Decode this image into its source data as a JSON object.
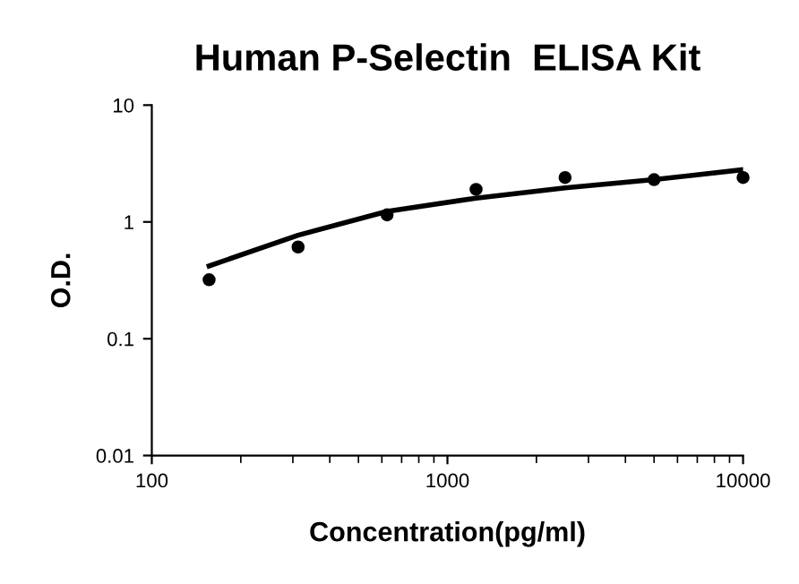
{
  "chart_data": {
    "type": "scatter",
    "title": "Human P-Selectin  ELISA Kit",
    "xlabel": "Concentration(pg/ml)",
    "ylabel": "O.D.",
    "log": "xy",
    "xlim": [
      100,
      10000
    ],
    "xticks": [
      100,
      1000,
      10000
    ],
    "ylim": [
      0.01,
      10
    ],
    "yticks": [
      0.01,
      0.1,
      1,
      10
    ],
    "grid": false,
    "series": [
      {
        "color": "#000000",
        "marker": "circle",
        "x": [
          156.25,
          312.5,
          625,
          1250,
          2500,
          5000,
          10000
        ],
        "values": [
          0.32,
          0.61,
          1.15,
          1.9,
          2.4,
          2.3,
          2.4
        ]
      },
      {
        "type": "line",
        "color": "#000000",
        "marker": "none",
        "x": [
          156.25,
          312.5,
          625,
          1250,
          2500,
          5000,
          10000
        ],
        "values": [
          0.42,
          0.77,
          1.23,
          1.6,
          1.96,
          2.3,
          2.8
        ]
      }
    ]
  }
}
